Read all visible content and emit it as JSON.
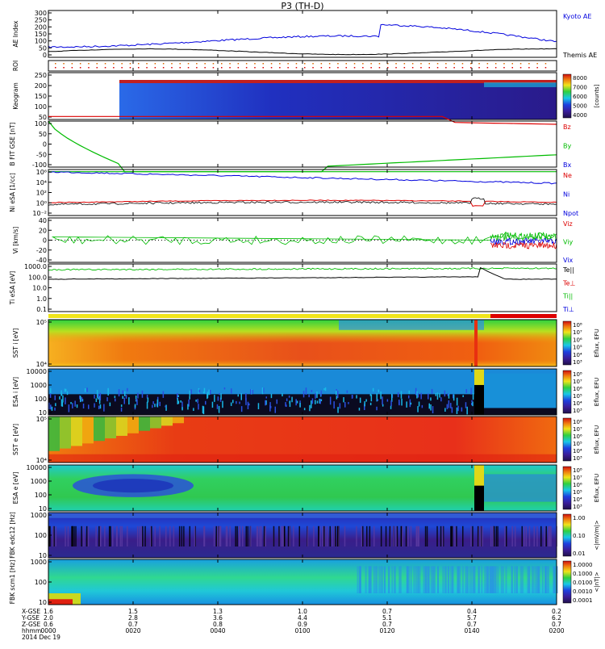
{
  "title": "P3 (TH-D)",
  "colors": {
    "blue": "#0000dd",
    "red": "#dd0000",
    "green": "#00bb00",
    "black": "#000000"
  },
  "chart_data": {
    "type": "line",
    "x_ticks": [
      "0000",
      "0020",
      "0040",
      "0100",
      "0120",
      "0140",
      "0200"
    ],
    "footer": {
      "row_labels": [
        "X-GSE",
        "Y-GSE",
        "Z-GSE",
        "hhmm",
        "2014 Dec 19"
      ],
      "x_gse": [
        "1.6",
        "1.5",
        "1.3",
        "1.0",
        "0.7",
        "0.4",
        "0.2"
      ],
      "y_gse": [
        "2.0",
        "2.8",
        "3.6",
        "4.4",
        "5.1",
        "5.7",
        "6.2"
      ],
      "z_gse": [
        "0.6",
        "0.7",
        "0.8",
        "0.9",
        "0.7",
        "0.7",
        "0.7"
      ]
    },
    "panels": [
      {
        "id": "ae",
        "ylabel": "AE Index",
        "yticks": [
          "300",
          "250",
          "200",
          "150",
          "100",
          "50",
          "0"
        ],
        "legend": [
          {
            "text": "Kyoto AE",
            "color": "#0000dd"
          },
          {
            "text": "Themis AE",
            "color": "#000000"
          }
        ]
      },
      {
        "id": "roi",
        "ylabel": "ROI",
        "yticks": [],
        "legend": []
      },
      {
        "id": "keo",
        "ylabel": "Keogram",
        "yticks": [
          "250",
          "200",
          "150",
          "100",
          "50"
        ],
        "colorbar": {
          "ticks": [
            "8000",
            "7000",
            "6000",
            "5000",
            "4000"
          ],
          "label": "[counts]"
        },
        "legend": []
      },
      {
        "id": "bfit",
        "ylabel": "B FIT GSE [nT]",
        "yticks": [
          "100",
          "50",
          "0",
          "-50",
          "-100"
        ],
        "legend": [
          {
            "text": "Bz",
            "color": "#dd0000"
          },
          {
            "text": "By",
            "color": "#00bb00"
          },
          {
            "text": "Bx",
            "color": "#0000dd"
          }
        ]
      },
      {
        "id": "ni",
        "ylabel": "Ni eSA [1/cc]",
        "yticks": [
          "10⁶",
          "10⁴",
          "10²",
          "10⁰",
          "10⁻²"
        ],
        "legend": [
          {
            "text": "Ne",
            "color": "#dd0000"
          },
          {
            "text": "Ni",
            "color": "#0000dd"
          },
          {
            "text": "Npot",
            "color": "#0000dd"
          }
        ]
      },
      {
        "id": "vi",
        "ylabel": "Vi [km/s]",
        "yticks": [
          "40",
          "20",
          "0",
          "-20",
          "-40"
        ],
        "legend": [
          {
            "text": "Viz",
            "color": "#dd0000"
          },
          {
            "text": "Viy",
            "color": "#00bb00"
          },
          {
            "text": "Vix",
            "color": "#0000dd"
          }
        ]
      },
      {
        "id": "ti",
        "ylabel": "Ti eSA [eV]",
        "yticks": [
          "1000.0",
          "100.0",
          "10.0",
          "1.0",
          "0.1"
        ],
        "legend": [
          {
            "text": "Te||",
            "color": "#000000"
          },
          {
            "text": "Te⊥",
            "color": "#dd0000"
          },
          {
            "text": "Ti||",
            "color": "#00bb00"
          },
          {
            "text": "Ti⊥",
            "color": "#0000dd"
          }
        ]
      },
      {
        "id": "ssti",
        "ylabel": "SST i [eV]",
        "yticks": [
          "10⁵",
          "10⁴"
        ],
        "colorbar": {
          "ticks": [
            "10⁸",
            "10⁷",
            "10⁶",
            "10⁵",
            "10⁴",
            "10³"
          ],
          "label": "Eflux, EFU"
        },
        "legend": []
      },
      {
        "id": "esai",
        "ylabel": "ESA i [eV]",
        "yticks": [
          "10000",
          "1000",
          "100",
          "10"
        ],
        "colorbar": {
          "ticks": [
            "10⁸",
            "10⁷",
            "10⁶",
            "10⁵",
            "10⁴",
            "10³"
          ],
          "label": "Eflux, EFU"
        },
        "legend": []
      },
      {
        "id": "sste",
        "ylabel": "SST e [eV]",
        "yticks": [
          "10⁵",
          "10⁴"
        ],
        "colorbar": {
          "ticks": [
            "10⁸",
            "10⁷",
            "10⁶",
            "10⁵",
            "10⁴",
            "10³"
          ],
          "label": "Eflux, EFU"
        },
        "legend": []
      },
      {
        "id": "esae",
        "ylabel": "ESA e [eV]",
        "yticks": [
          "10000",
          "1000",
          "100",
          "10"
        ],
        "colorbar": {
          "ticks": [
            "10⁸",
            "10⁷",
            "10⁶",
            "10⁵",
            "10⁴",
            "10³"
          ],
          "label": "Eflux, EFU"
        },
        "legend": []
      },
      {
        "id": "fbke",
        "ylabel": "FBK edc12 [Hz]",
        "yticks": [
          "1000",
          "100",
          "10"
        ],
        "colorbar": {
          "ticks": [
            "1.00",
            "0.10",
            "0.01"
          ],
          "label": "<|mV/m|>"
        },
        "legend": []
      },
      {
        "id": "fbkb",
        "ylabel": "FBK scm1 [Hz]",
        "yticks": [
          "1000",
          "100",
          "10"
        ],
        "colorbar": {
          "ticks": [
            "1.0000",
            "0.1000",
            "0.0100",
            "0.0010",
            "0.0001"
          ],
          "label": "<|nT|>"
        },
        "legend": []
      }
    ]
  }
}
